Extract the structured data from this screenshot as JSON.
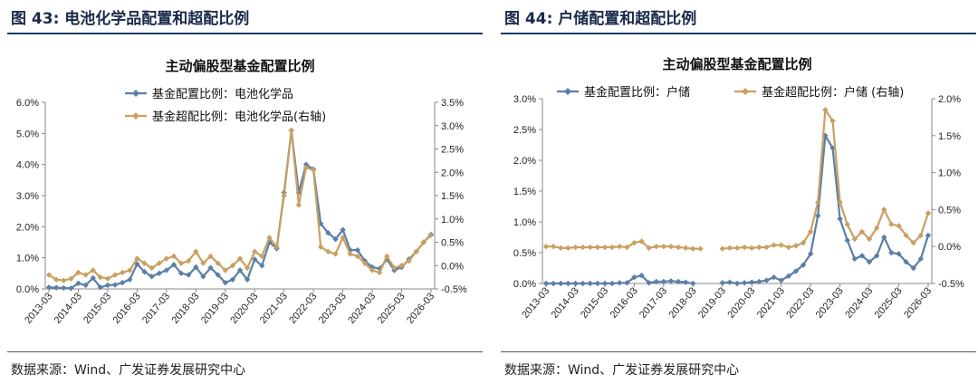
{
  "left": {
    "fig_label": "图 43:",
    "fig_title": "电池化学品配置和超配比例",
    "source": "数据来源：Wind、广发证券发展研究中心",
    "chart_data": {
      "type": "line",
      "title": "主动偏股型基金配置比例",
      "x": [
        "2013-03",
        "2013-06",
        "2013-09",
        "2013-12",
        "2014-03",
        "2014-06",
        "2014-09",
        "2014-12",
        "2015-03",
        "2015-06",
        "2015-09",
        "2015-12",
        "2016-03",
        "2016-06",
        "2016-09",
        "2016-12",
        "2017-03",
        "2017-06",
        "2017-09",
        "2017-12",
        "2018-03",
        "2018-06",
        "2018-09",
        "2018-12",
        "2019-03",
        "2019-06",
        "2019-09",
        "2019-12",
        "2020-03",
        "2020-06",
        "2020-09",
        "2020-12",
        "2021-03",
        "2021-06",
        "2021-09",
        "2021-12",
        "2022-03",
        "2022-06",
        "2022-09",
        "2022-12",
        "2023-03",
        "2023-06",
        "2023-09",
        "2023-12",
        "2024-03",
        "2024-06",
        "2024-09",
        "2024-12",
        "2025-03",
        "2025-06",
        "2025-09",
        "2025-12",
        "2026-03"
      ],
      "xticks": [
        "2013-03",
        "2014-03",
        "2015-03",
        "2016-03",
        "2017-03",
        "2018-03",
        "2019-03",
        "2020-03",
        "2021-03",
        "2022-03",
        "2023-03",
        "2024-03",
        "2025-03",
        "2026-03"
      ],
      "series": [
        {
          "name": "基金配置比例：电池化学品",
          "color": "#5b7fa6",
          "marker": "diamond",
          "axis": "left",
          "values": [
            0.05,
            0.04,
            0.03,
            0.02,
            0.18,
            0.12,
            0.35,
            0.05,
            0.12,
            0.13,
            0.2,
            0.3,
            0.8,
            0.55,
            0.4,
            0.5,
            0.6,
            0.78,
            0.5,
            0.45,
            0.7,
            0.4,
            0.68,
            0.45,
            0.2,
            0.3,
            0.6,
            0.3,
            0.95,
            0.75,
            1.5,
            1.3,
            3.1,
            5.1,
            3.1,
            4.0,
            3.85,
            2.1,
            1.8,
            1.6,
            1.9,
            1.25,
            1.25,
            0.9,
            0.7,
            0.65,
            0.95,
            0.6,
            0.7,
            0.95,
            1.2,
            1.5,
            1.75
          ]
        },
        {
          "name": "基金超配比例：电池化学品(右轴)",
          "color": "#c9a063",
          "marker": "diamond",
          "axis": "right",
          "values": [
            -0.2,
            -0.3,
            -0.32,
            -0.28,
            -0.15,
            -0.2,
            -0.1,
            -0.25,
            -0.28,
            -0.2,
            -0.15,
            -0.1,
            0.15,
            0.05,
            -0.05,
            0.05,
            0.15,
            0.2,
            0.05,
            0.1,
            0.3,
            0.05,
            0.2,
            0.05,
            -0.1,
            0.0,
            0.15,
            -0.05,
            0.3,
            0.2,
            0.6,
            0.4,
            1.5,
            2.9,
            1.3,
            2.1,
            2.05,
            0.4,
            0.3,
            0.25,
            0.6,
            0.25,
            0.2,
            0.05,
            -0.1,
            -0.15,
            0.2,
            -0.05,
            0.0,
            0.1,
            0.3,
            0.5,
            0.65
          ]
        }
      ],
      "ylim": [
        0,
        6
      ],
      "yticks": [
        "0.0%",
        "1.0%",
        "2.0%",
        "3.0%",
        "4.0%",
        "5.0%",
        "6.0%"
      ],
      "y2lim": [
        -0.5,
        3.5
      ],
      "y2ticks": [
        "-0.5%",
        "0.0%",
        "0.5%",
        "1.0%",
        "1.5%",
        "2.0%",
        "2.5%",
        "3.0%",
        "3.5%"
      ]
    }
  },
  "right": {
    "fig_label": "图 44:",
    "fig_title": "户储配置和超配比例",
    "source": "数据来源：Wind、广发证券发展研究中心",
    "chart_data": {
      "type": "line",
      "title": "主动偏股型基金配置比例",
      "x": [
        "2013-03",
        "2013-06",
        "2013-09",
        "2013-12",
        "2014-03",
        "2014-06",
        "2014-09",
        "2014-12",
        "2015-03",
        "2015-06",
        "2015-09",
        "2015-12",
        "2016-03",
        "2016-06",
        "2016-09",
        "2016-12",
        "2017-03",
        "2017-06",
        "2017-09",
        "2017-12",
        "2018-03",
        "2018-06",
        "2018-09",
        "2018-12",
        "2019-03",
        "2019-06",
        "2019-09",
        "2019-12",
        "2020-03",
        "2020-06",
        "2020-09",
        "2020-12",
        "2021-03",
        "2021-06",
        "2021-09",
        "2021-12",
        "2022-03",
        "2022-06",
        "2022-09",
        "2022-12",
        "2023-03",
        "2023-06",
        "2023-09",
        "2023-12",
        "2024-03",
        "2024-06",
        "2024-09",
        "2024-12",
        "2025-03",
        "2025-06",
        "2025-09",
        "2025-12",
        "2026-03"
      ],
      "xticks": [
        "2013-03",
        "2014-03",
        "2015-03",
        "2016-03",
        "2017-03",
        "2018-03",
        "2019-03",
        "2020-03",
        "2021-03",
        "2022-03",
        "2023-03",
        "2024-03",
        "2025-03",
        "2026-03"
      ],
      "series": [
        {
          "name": "基金配置比例：户储",
          "color": "#5b7fa6",
          "marker": "diamond",
          "axis": "left",
          "values": [
            0.0,
            0.0,
            0.0,
            0.0,
            0.0,
            0.0,
            0.0,
            0.0,
            0.0,
            0.0,
            0.01,
            0.01,
            0.1,
            0.13,
            0.01,
            0.03,
            0.03,
            0.04,
            0.03,
            0.02,
            0.0,
            null,
            null,
            null,
            0.01,
            0.02,
            0.0,
            0.01,
            0.02,
            0.03,
            0.05,
            0.1,
            0.05,
            0.12,
            0.2,
            0.3,
            0.48,
            1.1,
            2.4,
            2.2,
            1.05,
            0.7,
            0.4,
            0.45,
            0.35,
            0.45,
            0.75,
            0.5,
            0.48,
            0.35,
            0.25,
            0.4,
            0.78
          ]
        },
        {
          "name": "基金超配比例：户储 (右轴)",
          "color": "#c9a063",
          "marker": "diamond",
          "axis": "right",
          "values": [
            0.0,
            0.0,
            -0.02,
            -0.02,
            -0.01,
            -0.01,
            -0.01,
            -0.01,
            -0.01,
            -0.01,
            0.0,
            -0.01,
            0.05,
            0.07,
            -0.02,
            0.0,
            0.0,
            0.0,
            -0.01,
            -0.02,
            -0.03,
            -0.03,
            null,
            null,
            -0.03,
            -0.02,
            -0.02,
            -0.01,
            -0.02,
            -0.01,
            -0.01,
            0.02,
            0.02,
            -0.01,
            0.01,
            0.05,
            0.2,
            0.6,
            1.85,
            1.7,
            0.6,
            0.3,
            0.1,
            0.2,
            0.1,
            0.25,
            0.5,
            0.3,
            0.28,
            0.15,
            0.05,
            0.15,
            0.45
          ]
        }
      ],
      "ylim": [
        0,
        3
      ],
      "yticks": [
        "0.0%",
        "0.5%",
        "1.0%",
        "1.5%",
        "2.0%",
        "2.5%",
        "3.0%"
      ],
      "y2lim": [
        -0.5,
        2.0
      ],
      "y2ticks": [
        "-0.5%",
        "0.0%",
        "0.5%",
        "1.0%",
        "1.5%",
        "2.0%"
      ]
    }
  }
}
